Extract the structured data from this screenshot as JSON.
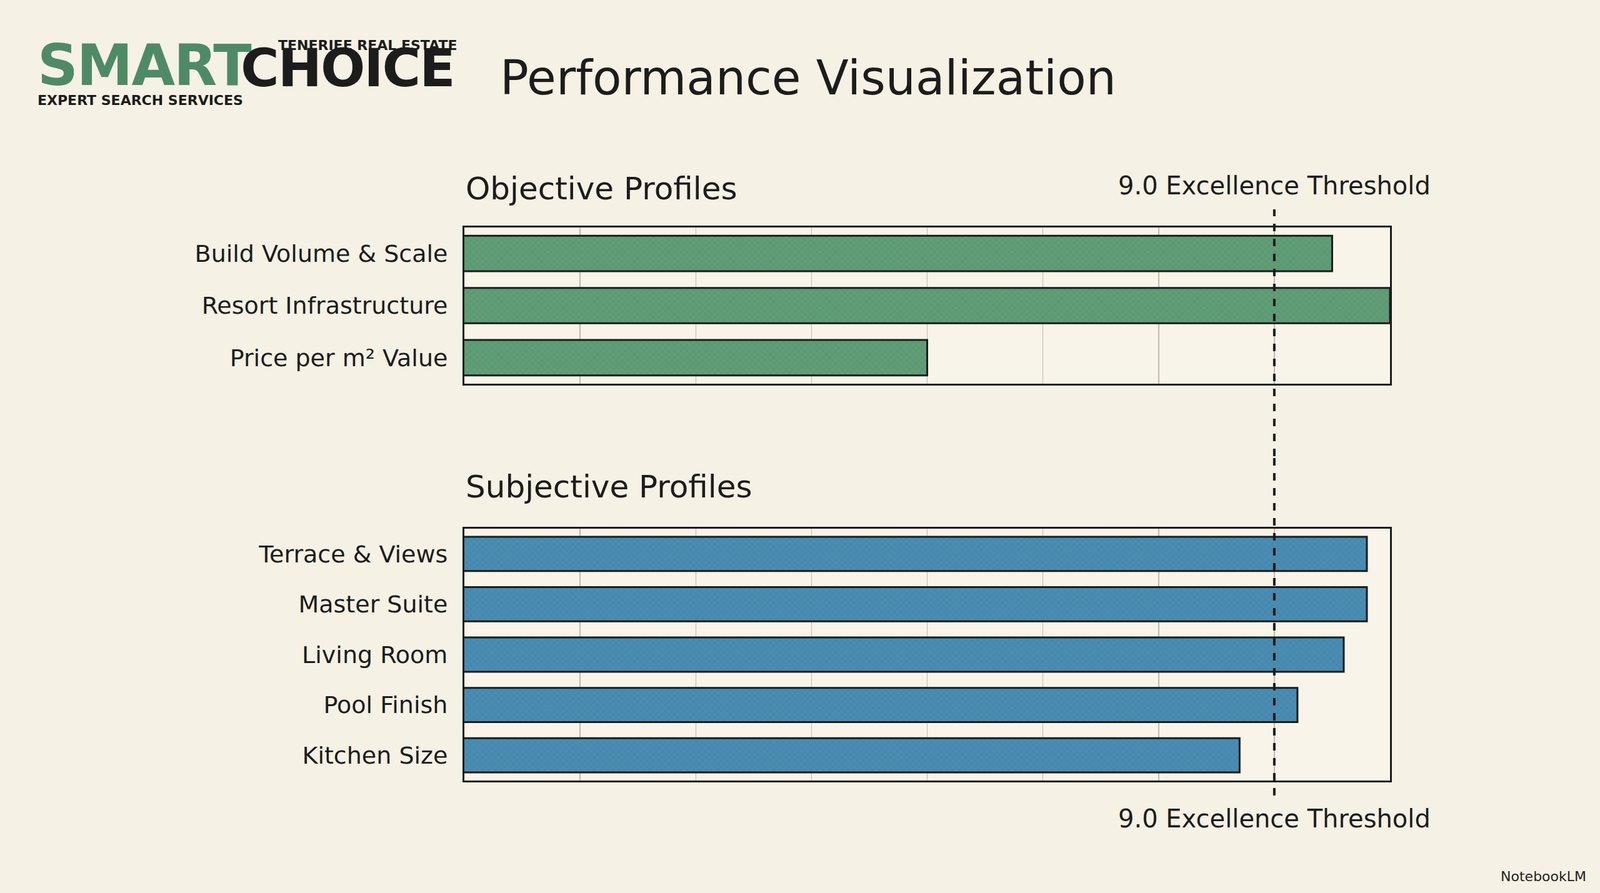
{
  "header": {
    "logo_main": [
      "SMART",
      "CHOICE"
    ],
    "logo_top": "TENERIFE REAL ESTATE",
    "logo_bottom": "EXPERT SEARCH SERVICES",
    "title": "Performance Visualization"
  },
  "footer": "NotebookLM",
  "chart_data": [
    {
      "type": "bar",
      "title": "Objective Profiles",
      "orientation": "horizontal",
      "categories": [
        "Build Volume & Scale",
        "Resort Infrastructure",
        "Price per m² Value"
      ],
      "values": [
        9.5,
        10.0,
        6.0
      ],
      "color": "#5f9e77",
      "xlim": [
        2,
        10
      ],
      "xticks": [
        2,
        3,
        4,
        5,
        6,
        7,
        8,
        9,
        10
      ],
      "grid": true,
      "tick_labels": false,
      "annotations": [
        {
          "text": "9.0 Excellence Threshold",
          "x": 9.0,
          "line_style": "dashed"
        }
      ]
    },
    {
      "type": "bar",
      "title": "Subjective Profiles",
      "orientation": "horizontal",
      "categories": [
        "Terrace & Views",
        "Master Suite",
        "Living Room",
        "Pool Finish",
        "Kitchen Size"
      ],
      "values": [
        9.8,
        9.8,
        9.6,
        9.2,
        8.7
      ],
      "color": "#4a8db3",
      "xlim": [
        2,
        10
      ],
      "xticks": [
        2,
        3,
        4,
        5,
        6,
        7,
        8,
        9,
        10
      ],
      "grid": true,
      "tick_labels": false,
      "annotations": [
        {
          "text": "9.0 Excellence Threshold",
          "x": 9.0,
          "line_style": "dashed"
        }
      ]
    }
  ]
}
